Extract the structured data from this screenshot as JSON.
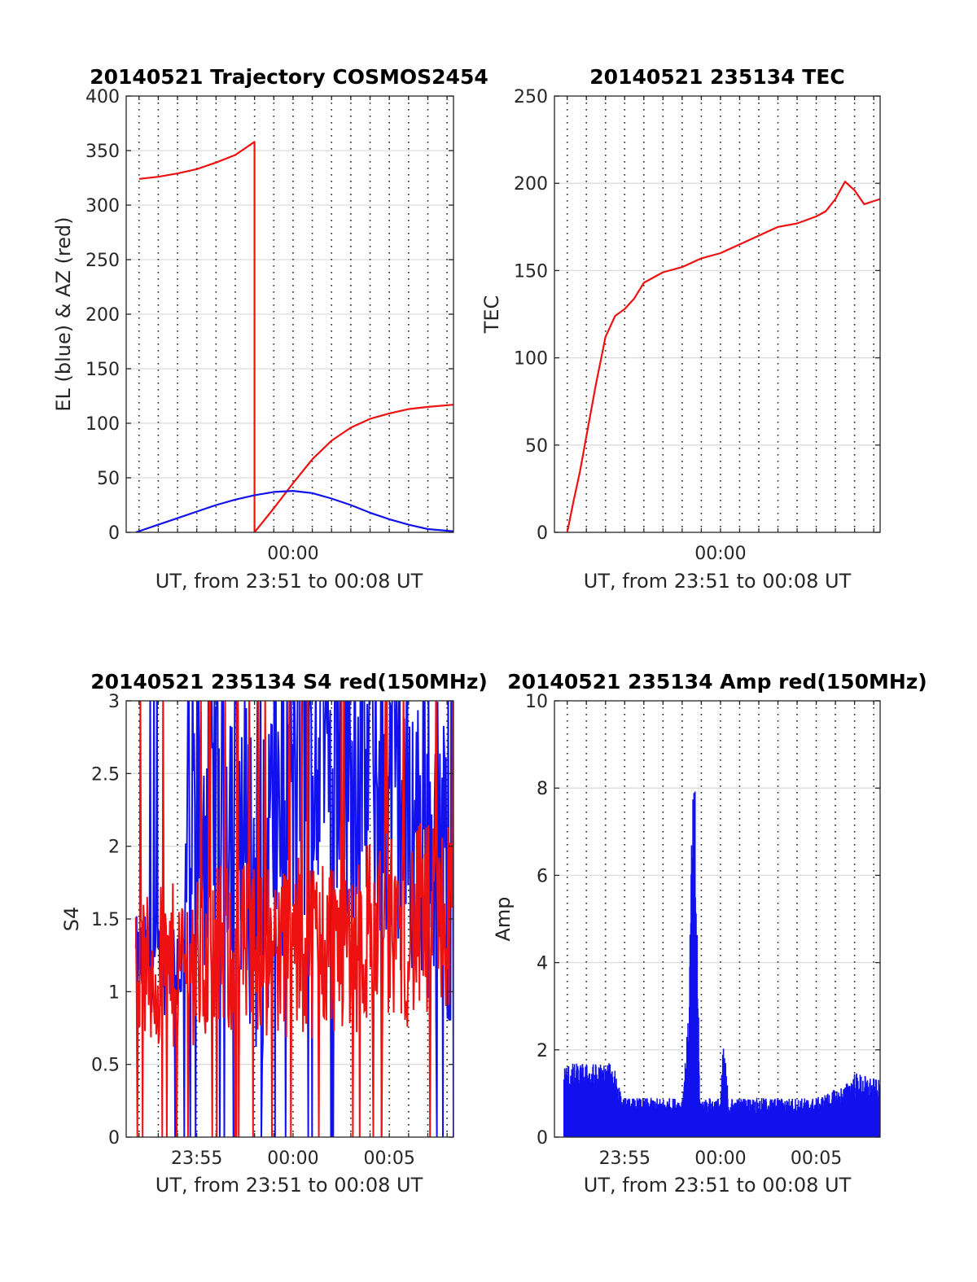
{
  "figure": {
    "background": "#ffffff",
    "colors": {
      "red": "#ee1111",
      "blue": "#1111ee"
    }
  },
  "chart_data": [
    {
      "id": "trajectory",
      "type": "line",
      "title": "20140521 Trajectory COSMOS2454",
      "xlabel": "UT, from 23:51 to 00:08 UT",
      "ylabel": "EL (blue) & AZ (red)",
      "xlim": [
        "23:51:20",
        "00:08:20"
      ],
      "ylim": [
        0,
        400
      ],
      "yticks": [
        0,
        50,
        100,
        150,
        200,
        250,
        300,
        350,
        400
      ],
      "xticks": [
        {
          "t": "00:00",
          "label": "00:00"
        }
      ],
      "grid": true,
      "series": [
        {
          "color": "#ee1111",
          "points": [
            [
              "23:52:00",
              324
            ],
            [
              "23:53:00",
              326
            ],
            [
              "23:54:00",
              329
            ],
            [
              "23:55:00",
              333
            ],
            [
              "23:56:00",
              339
            ],
            [
              "23:57:00",
              346
            ],
            [
              "23:58:00",
              358
            ],
            [
              "23:58:00",
              0
            ],
            [
              "23:59:00",
              22
            ],
            [
              "00:00:00",
              45
            ],
            [
              "00:01:00",
              67
            ],
            [
              "00:02:00",
              84
            ],
            [
              "00:03:00",
              96
            ],
            [
              "00:04:00",
              104
            ],
            [
              "00:05:00",
              109
            ],
            [
              "00:06:00",
              113
            ],
            [
              "00:07:00",
              115
            ],
            [
              "00:08:20",
              117
            ]
          ]
        },
        {
          "color": "#1111ee",
          "points": [
            [
              "23:51:50",
              0
            ],
            [
              "23:53:00",
              7
            ],
            [
              "23:54:00",
              13
            ],
            [
              "23:55:00",
              19
            ],
            [
              "23:56:00",
              25
            ],
            [
              "23:57:00",
              30
            ],
            [
              "23:58:00",
              34
            ],
            [
              "23:59:00",
              37
            ],
            [
              "00:00:00",
              38
            ],
            [
              "00:01:00",
              36
            ],
            [
              "00:02:00",
              31
            ],
            [
              "00:03:00",
              25
            ],
            [
              "00:04:00",
              18
            ],
            [
              "00:05:00",
              12
            ],
            [
              "00:06:00",
              7
            ],
            [
              "00:07:00",
              3
            ],
            [
              "00:08:20",
              1
            ]
          ]
        }
      ]
    },
    {
      "id": "tec",
      "type": "line",
      "title": "20140521 235134 TEC",
      "xlabel": "UT, from 23:51 to 00:08 UT",
      "ylabel": "TEC",
      "xlim": [
        "23:51:20",
        "00:08:20"
      ],
      "ylim": [
        0,
        250
      ],
      "yticks": [
        0,
        50,
        100,
        150,
        200,
        250
      ],
      "xticks": [
        {
          "t": "00:00",
          "label": "00:00"
        }
      ],
      "grid": true,
      "series": [
        {
          "color": "#ee1111",
          "points": [
            [
              "23:52:00",
              0
            ],
            [
              "23:52:20",
              18
            ],
            [
              "23:52:40",
              35
            ],
            [
              "23:53:00",
              55
            ],
            [
              "23:53:30",
              85
            ],
            [
              "23:54:00",
              112
            ],
            [
              "23:54:30",
              124
            ],
            [
              "23:55:00",
              128
            ],
            [
              "23:55:30",
              134
            ],
            [
              "23:56:00",
              143
            ],
            [
              "23:57:00",
              149
            ],
            [
              "23:58:00",
              152
            ],
            [
              "23:59:00",
              157
            ],
            [
              "00:00:00",
              160
            ],
            [
              "00:01:00",
              165
            ],
            [
              "00:02:00",
              170
            ],
            [
              "00:03:00",
              175
            ],
            [
              "00:04:00",
              177
            ],
            [
              "00:05:00",
              181
            ],
            [
              "00:05:30",
              184
            ],
            [
              "00:06:00",
              191
            ],
            [
              "00:06:30",
              201
            ],
            [
              "00:07:00",
              196
            ],
            [
              "00:07:30",
              188
            ],
            [
              "00:08:20",
              191
            ]
          ]
        }
      ]
    },
    {
      "id": "s4",
      "type": "line",
      "title": "20140521 235134 S4 red(150MHz)",
      "xlabel": "UT, from 23:51 to 00:08 UT",
      "ylabel": "S4",
      "xlim": [
        "23:51:20",
        "00:08:20"
      ],
      "ylim": [
        0,
        3
      ],
      "yticks": [
        0,
        0.5,
        1,
        1.5,
        2,
        2.5,
        3
      ],
      "xticks": [
        {
          "t": "23:55",
          "label": "23:55"
        },
        {
          "t": "00:00",
          "label": "00:00"
        },
        {
          "t": "00:05",
          "label": "00:05"
        }
      ],
      "grid": true,
      "series": [
        {
          "color": "#1111ee",
          "start": "23:51:50",
          "end": "00:08:20",
          "profile": [
            [
              "23:51:50",
              1.2
            ],
            [
              "23:54:20",
              1.2
            ],
            [
              "23:54:30",
              2.1
            ],
            [
              "23:57:00",
              2.4
            ],
            [
              "23:58:20",
              1.5
            ],
            [
              "23:59:00",
              2.3
            ],
            [
              "00:02:00",
              2.6
            ],
            [
              "00:04:00",
              2.5
            ],
            [
              "00:06:00",
              2.2
            ],
            [
              "00:08:20",
              1.8
            ]
          ],
          "spread": [
            [
              "23:51:50",
              0.2
            ],
            [
              "23:54:20",
              0.25
            ],
            [
              "23:54:30",
              0.7
            ],
            [
              "00:08:20",
              0.7
            ]
          ]
        },
        {
          "color": "#ee1111",
          "start": "23:51:50",
          "end": "00:08:20",
          "profile": [
            [
              "23:51:50",
              1.1
            ],
            [
              "23:54:30",
              1.2
            ],
            [
              "23:57:00",
              1.3
            ],
            [
              "00:00:00",
              1.3
            ],
            [
              "00:04:00",
              1.4
            ],
            [
              "00:08:20",
              1.5
            ]
          ],
          "spread": [
            [
              "23:51:50",
              0.35
            ],
            [
              "00:08:20",
              0.45
            ]
          ]
        }
      ]
    },
    {
      "id": "amp",
      "type": "line",
      "title": "20140521 235134 Amp red(150MHz)",
      "xlabel": "UT, from 23:51 to 00:08 UT",
      "ylabel": "Amp",
      "xlim": [
        "23:51:20",
        "00:08:20"
      ],
      "ylim": [
        0,
        10
      ],
      "yticks": [
        0,
        2,
        4,
        6,
        8,
        10
      ],
      "xticks": [
        {
          "t": "23:55",
          "label": "23:55"
        },
        {
          "t": "00:00",
          "label": "00:00"
        },
        {
          "t": "00:05",
          "label": "00:05"
        }
      ],
      "grid": true,
      "series": [
        {
          "color": "#1111ee",
          "start": "23:51:50",
          "end": "00:08:20",
          "envelope": [
            [
              "23:51:50",
              1.7
            ],
            [
              "23:54:30",
              1.7
            ],
            [
              "23:54:50",
              0.9
            ],
            [
              "23:58:00",
              0.9
            ],
            [
              "23:58:20",
              2.8
            ],
            [
              "23:58:30",
              7.4
            ],
            [
              "23:58:40",
              8.4
            ],
            [
              "23:58:55",
              0.9
            ],
            [
              "00:00:00",
              0.9
            ],
            [
              "00:00:10",
              2.3
            ],
            [
              "00:00:25",
              0.9
            ],
            [
              "00:05:00",
              0.9
            ],
            [
              "00:06:30",
              1.2
            ],
            [
              "00:07:00",
              1.5
            ],
            [
              "00:08:20",
              1.3
            ]
          ]
        }
      ]
    }
  ]
}
